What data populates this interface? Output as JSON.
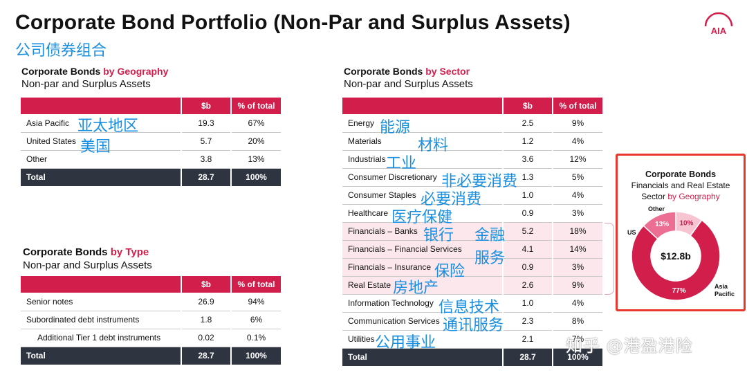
{
  "page": {
    "title": "Corporate Bond Portfolio (Non-Par and Surplus Assets)",
    "subtitle_cn": "公司债券组合",
    "logo_text": "AIA",
    "watermark": "知乎 @港盈港险"
  },
  "geography": {
    "heading_plain": "Corporate Bonds ",
    "heading_accent": "by Geography",
    "subheading": "Non-par and Surplus Assets",
    "columns": [
      "",
      "$b",
      "% of total"
    ],
    "rows": [
      {
        "label": "Asia Pacific",
        "cn": "亚太地区",
        "b": "19.3",
        "pct": "67%"
      },
      {
        "label": "United States",
        "cn": "美国",
        "b": "5.7",
        "pct": "20%"
      },
      {
        "label": "Other",
        "cn": "",
        "b": "3.8",
        "pct": "13%"
      }
    ],
    "total": {
      "label": "Total",
      "b": "28.7",
      "pct": "100%"
    }
  },
  "type": {
    "heading_plain": "Corporate Bonds ",
    "heading_accent": "by Type",
    "subheading": "Non-par and Surplus Assets",
    "columns": [
      "",
      "$b",
      "% of total"
    ],
    "rows": [
      {
        "label": "Senior notes",
        "b": "26.9",
        "pct": "94%"
      },
      {
        "label": "Subordinated debt instruments",
        "b": "1.8",
        "pct": "6%"
      },
      {
        "label": "Additional Tier 1 debt instruments",
        "b": "0.02",
        "pct": "0.1%"
      }
    ],
    "total": {
      "label": "Total",
      "b": "28.7",
      "pct": "100%"
    }
  },
  "sector": {
    "heading_plain": "Corporate Bonds ",
    "heading_accent": "by Sector",
    "subheading": "Non-par and Surplus Assets",
    "columns": [
      "",
      "$b",
      "% of total"
    ],
    "rows": [
      {
        "label": "Energy",
        "cn": "能源",
        "b": "2.5",
        "pct": "9%"
      },
      {
        "label": "Materials",
        "cn": "材料",
        "b": "1.2",
        "pct": "4%"
      },
      {
        "label": "Industrials",
        "cn": "工业",
        "b": "3.6",
        "pct": "12%"
      },
      {
        "label": "Consumer Discretionary",
        "cn": "非必要消费",
        "b": "1.3",
        "pct": "5%"
      },
      {
        "label": "Consumer Staples",
        "cn": "必要消费",
        "b": "1.0",
        "pct": "4%"
      },
      {
        "label": "Healthcare",
        "cn": "医疗保健",
        "b": "0.9",
        "pct": "3%"
      },
      {
        "label": "Financials – Banks",
        "cn": "银行",
        "b": "5.2",
        "pct": "18%"
      },
      {
        "label": "Financials – Financial Services",
        "cn": "",
        "b": "4.1",
        "pct": "14%"
      },
      {
        "label": "Financials – Insurance",
        "cn": "保险",
        "b": "0.9",
        "pct": "3%"
      },
      {
        "label": "Real Estate",
        "cn": "房地产",
        "b": "2.6",
        "pct": "9%"
      },
      {
        "label": "Information Technology",
        "cn": "信息技术",
        "b": "1.0",
        "pct": "4%"
      },
      {
        "label": "Communication Services",
        "cn": "通讯服务",
        "b": "2.3",
        "pct": "8%"
      },
      {
        "label": "Utilities",
        "cn": "公用事业",
        "b": "2.1",
        "pct": "7%"
      }
    ],
    "total": {
      "label": "Total",
      "b": "28.7",
      "pct": "100%"
    },
    "financials_cn_1": "金融",
    "financials_cn_2": "服务"
  },
  "donut": {
    "title_line1": "Corporate Bonds",
    "title_line2": "Financials and Real Estate",
    "title_line3_plain": "Sector ",
    "title_line3_accent": "by Geography",
    "center_label": "$12.8b",
    "segments": [
      {
        "name": "Asia Pacific",
        "pct": 77,
        "label": "77%",
        "color": "#d21e4b"
      },
      {
        "name": "US",
        "pct": 13,
        "label": "13%",
        "color": "#ec6f93"
      },
      {
        "name": "Other",
        "pct": 10,
        "label": "10%",
        "color": "#f7c4d2"
      }
    ],
    "name_labels": {
      "us": "US",
      "other": "Other",
      "asia1": "Asia",
      "asia2": "Pacific"
    }
  }
}
